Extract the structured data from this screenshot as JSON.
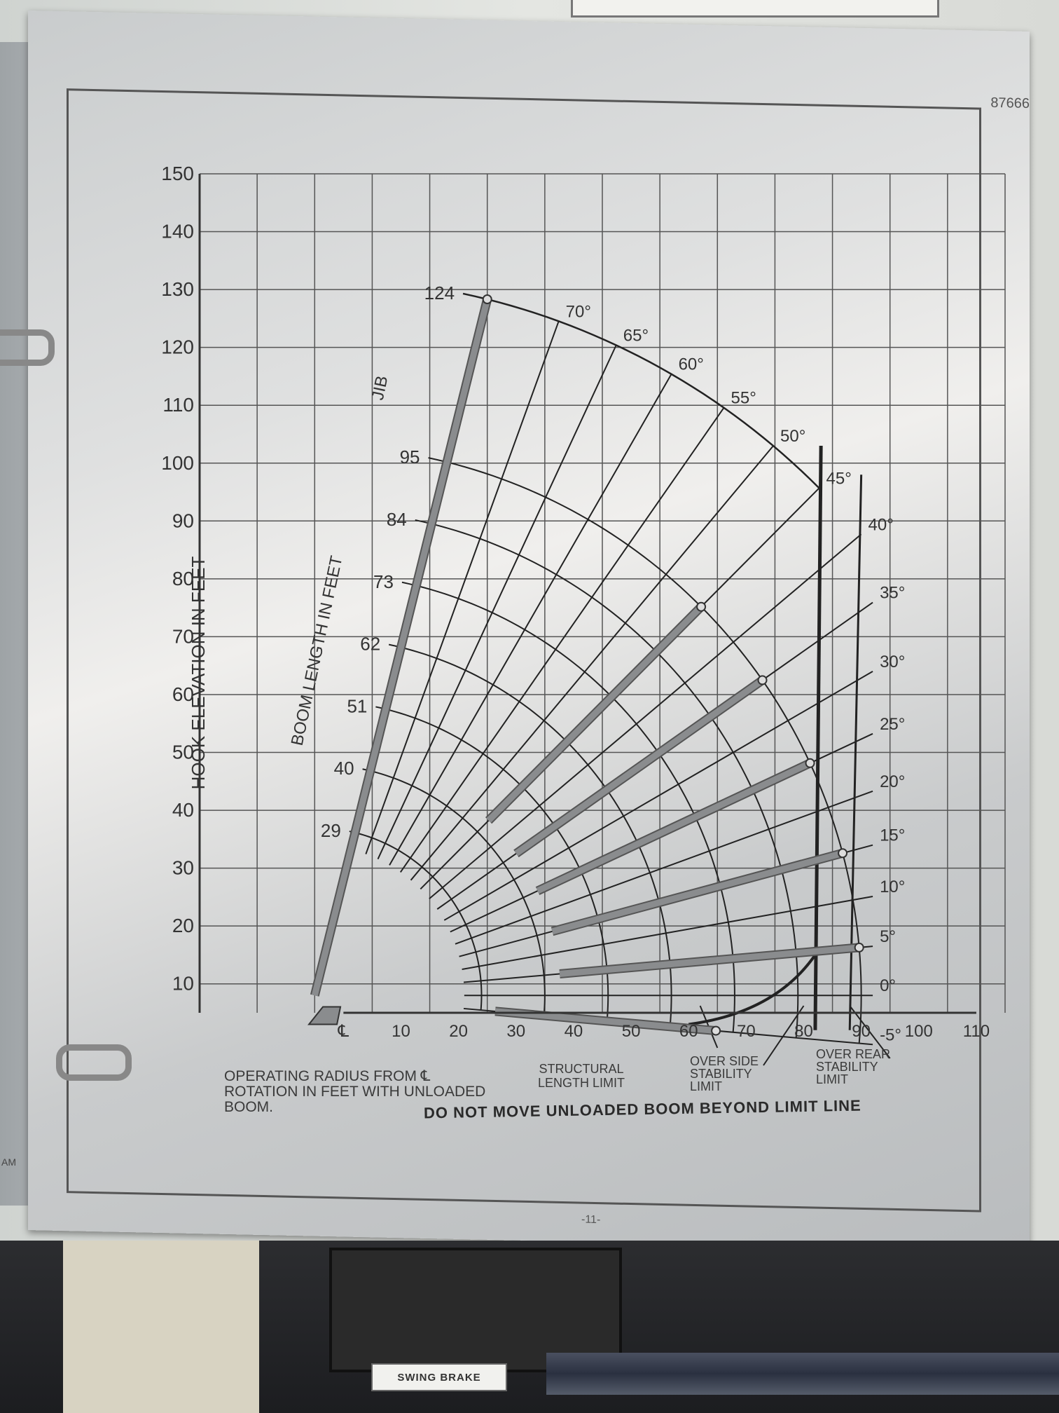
{
  "plate": {
    "part_number": "87666",
    "page_number": "-11-",
    "side_label": "AM",
    "swing_brake_label": "SWING BRAKE"
  },
  "chart_data": {
    "type": "line",
    "title": "",
    "xlabel": "OPERATING RADIUS FROM ℄ ROTATION IN FEET WITH UNLOADED BOOM.",
    "ylabel": "HOOK ELEVATION IN FEET",
    "xlim": [
      -25,
      115
    ],
    "ylim": [
      5,
      150
    ],
    "grid": true,
    "x_ticks": [
      "℄",
      "10",
      "20",
      "30",
      "40",
      "50",
      "60",
      "70",
      "80",
      "90",
      "100",
      "110"
    ],
    "x_tick_values": [
      0,
      10,
      20,
      30,
      40,
      50,
      60,
      70,
      80,
      90,
      100,
      110
    ],
    "y_ticks": [
      10,
      20,
      30,
      40,
      50,
      60,
      70,
      80,
      90,
      100,
      110,
      120,
      130,
      140,
      150
    ],
    "boom_length_label": "BOOM LENGTH IN FEET",
    "boom_lengths": [
      29,
      40,
      51,
      62,
      73,
      84,
      95
    ],
    "jib_label": "JIB",
    "jib_length": 124,
    "boom_angles": [
      70,
      65,
      60,
      55,
      50,
      45,
      40,
      35,
      30,
      25,
      20,
      15,
      10,
      5,
      0,
      -5
    ],
    "boom_angle_suffix": "°",
    "limits": [
      {
        "label": "STRUCTURAL LENGTH LIMIT",
        "approx_radius": 62
      },
      {
        "label": "OVER SIDE STABILITY LIMIT",
        "approx_radius": 83
      },
      {
        "label": "OVER REAR STABILITY LIMIT",
        "approx_radius": 88
      }
    ],
    "warning": "DO NOT MOVE UNLOADED BOOM BEYOND LIMIT LINE"
  }
}
